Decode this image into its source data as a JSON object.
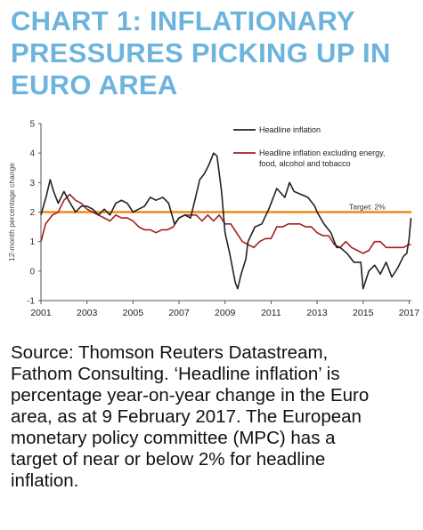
{
  "title_lines": [
    "CHART 1: INFLATIONARY",
    "PRESSURES PICKING UP IN",
    "EURO AREA"
  ],
  "caption_lines": [
    "Source: Thomson Reuters Datastream,",
    "Fathom Consulting. ‘Headline inflation’ is",
    "percentage year-on-year change in the Euro",
    "area, as at 9 February 2017. The European",
    "monetary policy committee (MPC) has a",
    "target of near or below 2% for headline",
    "inflation."
  ],
  "colors": {
    "title": "#6cb4dd",
    "headline": "#222222",
    "core": "#a31f1f",
    "target": "#f08a1c"
  },
  "chart_data": {
    "type": "line",
    "ylabel": "12-month percentage change",
    "xlim": [
      2001,
      2017.1
    ],
    "ylim": [
      -1,
      5
    ],
    "x_ticks": [
      2001,
      2003,
      2005,
      2007,
      2009,
      2011,
      2013,
      2015,
      2017
    ],
    "x_tick_labels": [
      "2001",
      "2003",
      "2005",
      "2007",
      "2009",
      "2011",
      "2013",
      "2015",
      "2017"
    ],
    "y_ticks": [
      -1,
      0,
      1,
      2,
      3,
      4,
      5
    ],
    "y_tick_labels": [
      "-1",
      "0",
      "1",
      "2",
      "3",
      "4",
      "5"
    ],
    "grid": false,
    "legend_position": "top-right",
    "target": {
      "value": 2,
      "label": "Target: 2%"
    },
    "series": [
      {
        "name": "Headline inflation",
        "points": [
          [
            2001.0,
            1.9
          ],
          [
            2001.25,
            2.6
          ],
          [
            2001.4,
            3.1
          ],
          [
            2001.55,
            2.7
          ],
          [
            2001.75,
            2.3
          ],
          [
            2002.0,
            2.7
          ],
          [
            2002.2,
            2.4
          ],
          [
            2002.5,
            2.0
          ],
          [
            2002.75,
            2.2
          ],
          [
            2003.0,
            2.2
          ],
          [
            2003.25,
            2.1
          ],
          [
            2003.5,
            1.9
          ],
          [
            2003.75,
            2.1
          ],
          [
            2004.0,
            1.9
          ],
          [
            2004.25,
            2.3
          ],
          [
            2004.5,
            2.4
          ],
          [
            2004.75,
            2.3
          ],
          [
            2005.0,
            2.0
          ],
          [
            2005.25,
            2.1
          ],
          [
            2005.5,
            2.2
          ],
          [
            2005.75,
            2.5
          ],
          [
            2006.0,
            2.4
          ],
          [
            2006.3,
            2.5
          ],
          [
            2006.55,
            2.3
          ],
          [
            2006.8,
            1.6
          ],
          [
            2007.0,
            1.8
          ],
          [
            2007.25,
            1.9
          ],
          [
            2007.5,
            1.8
          ],
          [
            2007.75,
            2.6
          ],
          [
            2007.9,
            3.1
          ],
          [
            2008.1,
            3.3
          ],
          [
            2008.3,
            3.6
          ],
          [
            2008.5,
            4.0
          ],
          [
            2008.65,
            3.9
          ],
          [
            2008.85,
            2.7
          ],
          [
            2009.0,
            1.3
          ],
          [
            2009.2,
            0.6
          ],
          [
            2009.45,
            -0.4
          ],
          [
            2009.55,
            -0.6
          ],
          [
            2009.7,
            -0.1
          ],
          [
            2009.9,
            0.4
          ],
          [
            2010.0,
            1.0
          ],
          [
            2010.3,
            1.5
          ],
          [
            2010.6,
            1.6
          ],
          [
            2010.9,
            2.1
          ],
          [
            2011.0,
            2.3
          ],
          [
            2011.25,
            2.8
          ],
          [
            2011.6,
            2.5
          ],
          [
            2011.8,
            3.0
          ],
          [
            2012.0,
            2.7
          ],
          [
            2012.3,
            2.6
          ],
          [
            2012.6,
            2.5
          ],
          [
            2012.9,
            2.2
          ],
          [
            2013.0,
            2.0
          ],
          [
            2013.3,
            1.6
          ],
          [
            2013.6,
            1.3
          ],
          [
            2013.85,
            0.8
          ],
          [
            2014.0,
            0.8
          ],
          [
            2014.3,
            0.6
          ],
          [
            2014.6,
            0.3
          ],
          [
            2014.9,
            0.3
          ],
          [
            2015.0,
            -0.6
          ],
          [
            2015.25,
            0.0
          ],
          [
            2015.5,
            0.2
          ],
          [
            2015.75,
            -0.1
          ],
          [
            2016.0,
            0.3
          ],
          [
            2016.25,
            -0.2
          ],
          [
            2016.5,
            0.1
          ],
          [
            2016.75,
            0.5
          ],
          [
            2016.9,
            0.6
          ],
          [
            2017.0,
            1.1
          ],
          [
            2017.08,
            1.8
          ]
        ]
      },
      {
        "name": "Headline inflation excluding energy, food, alcohol and tobacco",
        "points": [
          [
            2001.0,
            1.0
          ],
          [
            2001.2,
            1.6
          ],
          [
            2001.5,
            1.9
          ],
          [
            2001.75,
            2.0
          ],
          [
            2002.0,
            2.4
          ],
          [
            2002.25,
            2.6
          ],
          [
            2002.5,
            2.4
          ],
          [
            2002.75,
            2.3
          ],
          [
            2003.0,
            2.1
          ],
          [
            2003.25,
            2.0
          ],
          [
            2003.5,
            1.9
          ],
          [
            2003.75,
            1.8
          ],
          [
            2004.0,
            1.7
          ],
          [
            2004.25,
            1.9
          ],
          [
            2004.5,
            1.8
          ],
          [
            2004.75,
            1.8
          ],
          [
            2005.0,
            1.7
          ],
          [
            2005.25,
            1.5
          ],
          [
            2005.5,
            1.4
          ],
          [
            2005.75,
            1.4
          ],
          [
            2006.0,
            1.3
          ],
          [
            2006.25,
            1.4
          ],
          [
            2006.5,
            1.4
          ],
          [
            2006.75,
            1.5
          ],
          [
            2007.0,
            1.8
          ],
          [
            2007.25,
            1.9
          ],
          [
            2007.5,
            1.9
          ],
          [
            2007.75,
            1.9
          ],
          [
            2008.0,
            1.7
          ],
          [
            2008.25,
            1.9
          ],
          [
            2008.5,
            1.7
          ],
          [
            2008.75,
            1.9
          ],
          [
            2009.0,
            1.6
          ],
          [
            2009.25,
            1.6
          ],
          [
            2009.5,
            1.3
          ],
          [
            2009.75,
            1.0
          ],
          [
            2010.0,
            0.9
          ],
          [
            2010.25,
            0.8
          ],
          [
            2010.5,
            1.0
          ],
          [
            2010.75,
            1.1
          ],
          [
            2011.0,
            1.1
          ],
          [
            2011.25,
            1.5
          ],
          [
            2011.5,
            1.5
          ],
          [
            2011.75,
            1.6
          ],
          [
            2012.0,
            1.6
          ],
          [
            2012.25,
            1.6
          ],
          [
            2012.5,
            1.5
          ],
          [
            2012.75,
            1.5
          ],
          [
            2013.0,
            1.3
          ],
          [
            2013.25,
            1.2
          ],
          [
            2013.5,
            1.2
          ],
          [
            2013.75,
            0.9
          ],
          [
            2014.0,
            0.8
          ],
          [
            2014.25,
            1.0
          ],
          [
            2014.5,
            0.8
          ],
          [
            2014.75,
            0.7
          ],
          [
            2015.0,
            0.6
          ],
          [
            2015.25,
            0.7
          ],
          [
            2015.5,
            1.0
          ],
          [
            2015.75,
            1.0
          ],
          [
            2016.0,
            0.8
          ],
          [
            2016.25,
            0.8
          ],
          [
            2016.5,
            0.8
          ],
          [
            2016.75,
            0.8
          ],
          [
            2017.0,
            0.9
          ],
          [
            2017.08,
            0.9
          ]
        ]
      }
    ]
  }
}
